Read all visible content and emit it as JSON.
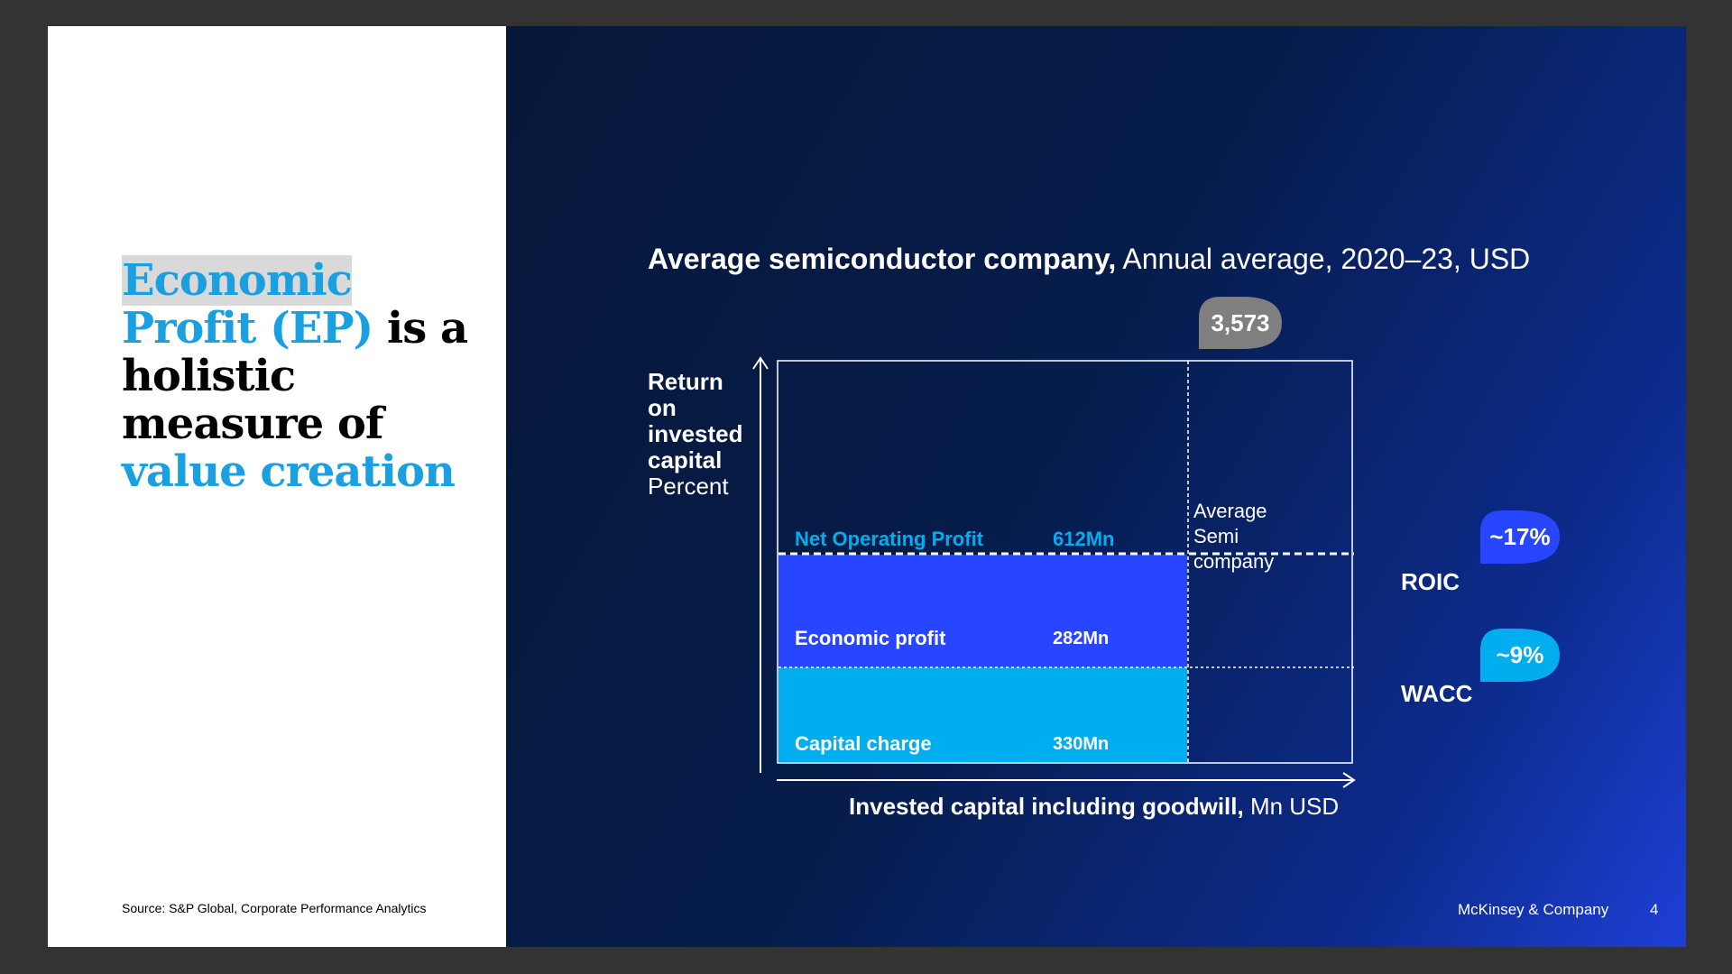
{
  "slide": {
    "headline": {
      "part1": "Economic",
      "part2": "Profit (EP)",
      "part3": " is a holistic measure of ",
      "part4": "value creation"
    },
    "source": "Source: S&P Global, Corporate Performance Analytics",
    "footer": {
      "brand": "McKinsey & Company",
      "page": "4"
    }
  },
  "chart": {
    "title_bold": "Average semiconductor company,",
    "title_rest": " Annual average, 2020–23, USD",
    "ylabel_bold": [
      "Return",
      "on",
      "invested",
      "capital"
    ],
    "ylabel_unit": "Percent",
    "xlabel_bold": "Invested capital including goodwill,",
    "xlabel_rest": " Mn USD",
    "avg_label": [
      "Average",
      "Semi",
      "company"
    ],
    "roic_name": "ROIC",
    "wacc_name": "WACC",
    "roic_value": "~17%",
    "wacc_value": "~9%",
    "capital_value": "3,573",
    "nop_label": "Net Operating Profit",
    "nop_value": "612Mn",
    "ep_label": "Economic profit",
    "ep_value": "282Mn",
    "cc_label": "Capital charge",
    "cc_value": "330Mn",
    "colors": {
      "ep": "#2846ff",
      "cc": "#00aeef",
      "bubble_roic": "#2846ff",
      "bubble_wacc": "#00aeef",
      "bubble_cap": "#7f7f7f",
      "nop_text": "#00aeef"
    }
  },
  "chart_data": {
    "type": "bar",
    "categories": [
      "Economic profit",
      "Capital charge"
    ],
    "values": [
      282,
      330
    ],
    "title": "Average semiconductor company, Annual average, 2020–23, USD",
    "xlabel": "Invested capital including goodwill, Mn USD",
    "ylabel": "Return on invested capital Percent",
    "invested_capital": 3573,
    "roic_percent": 17,
    "wacc_percent": 9,
    "net_operating_profit": 612
  }
}
